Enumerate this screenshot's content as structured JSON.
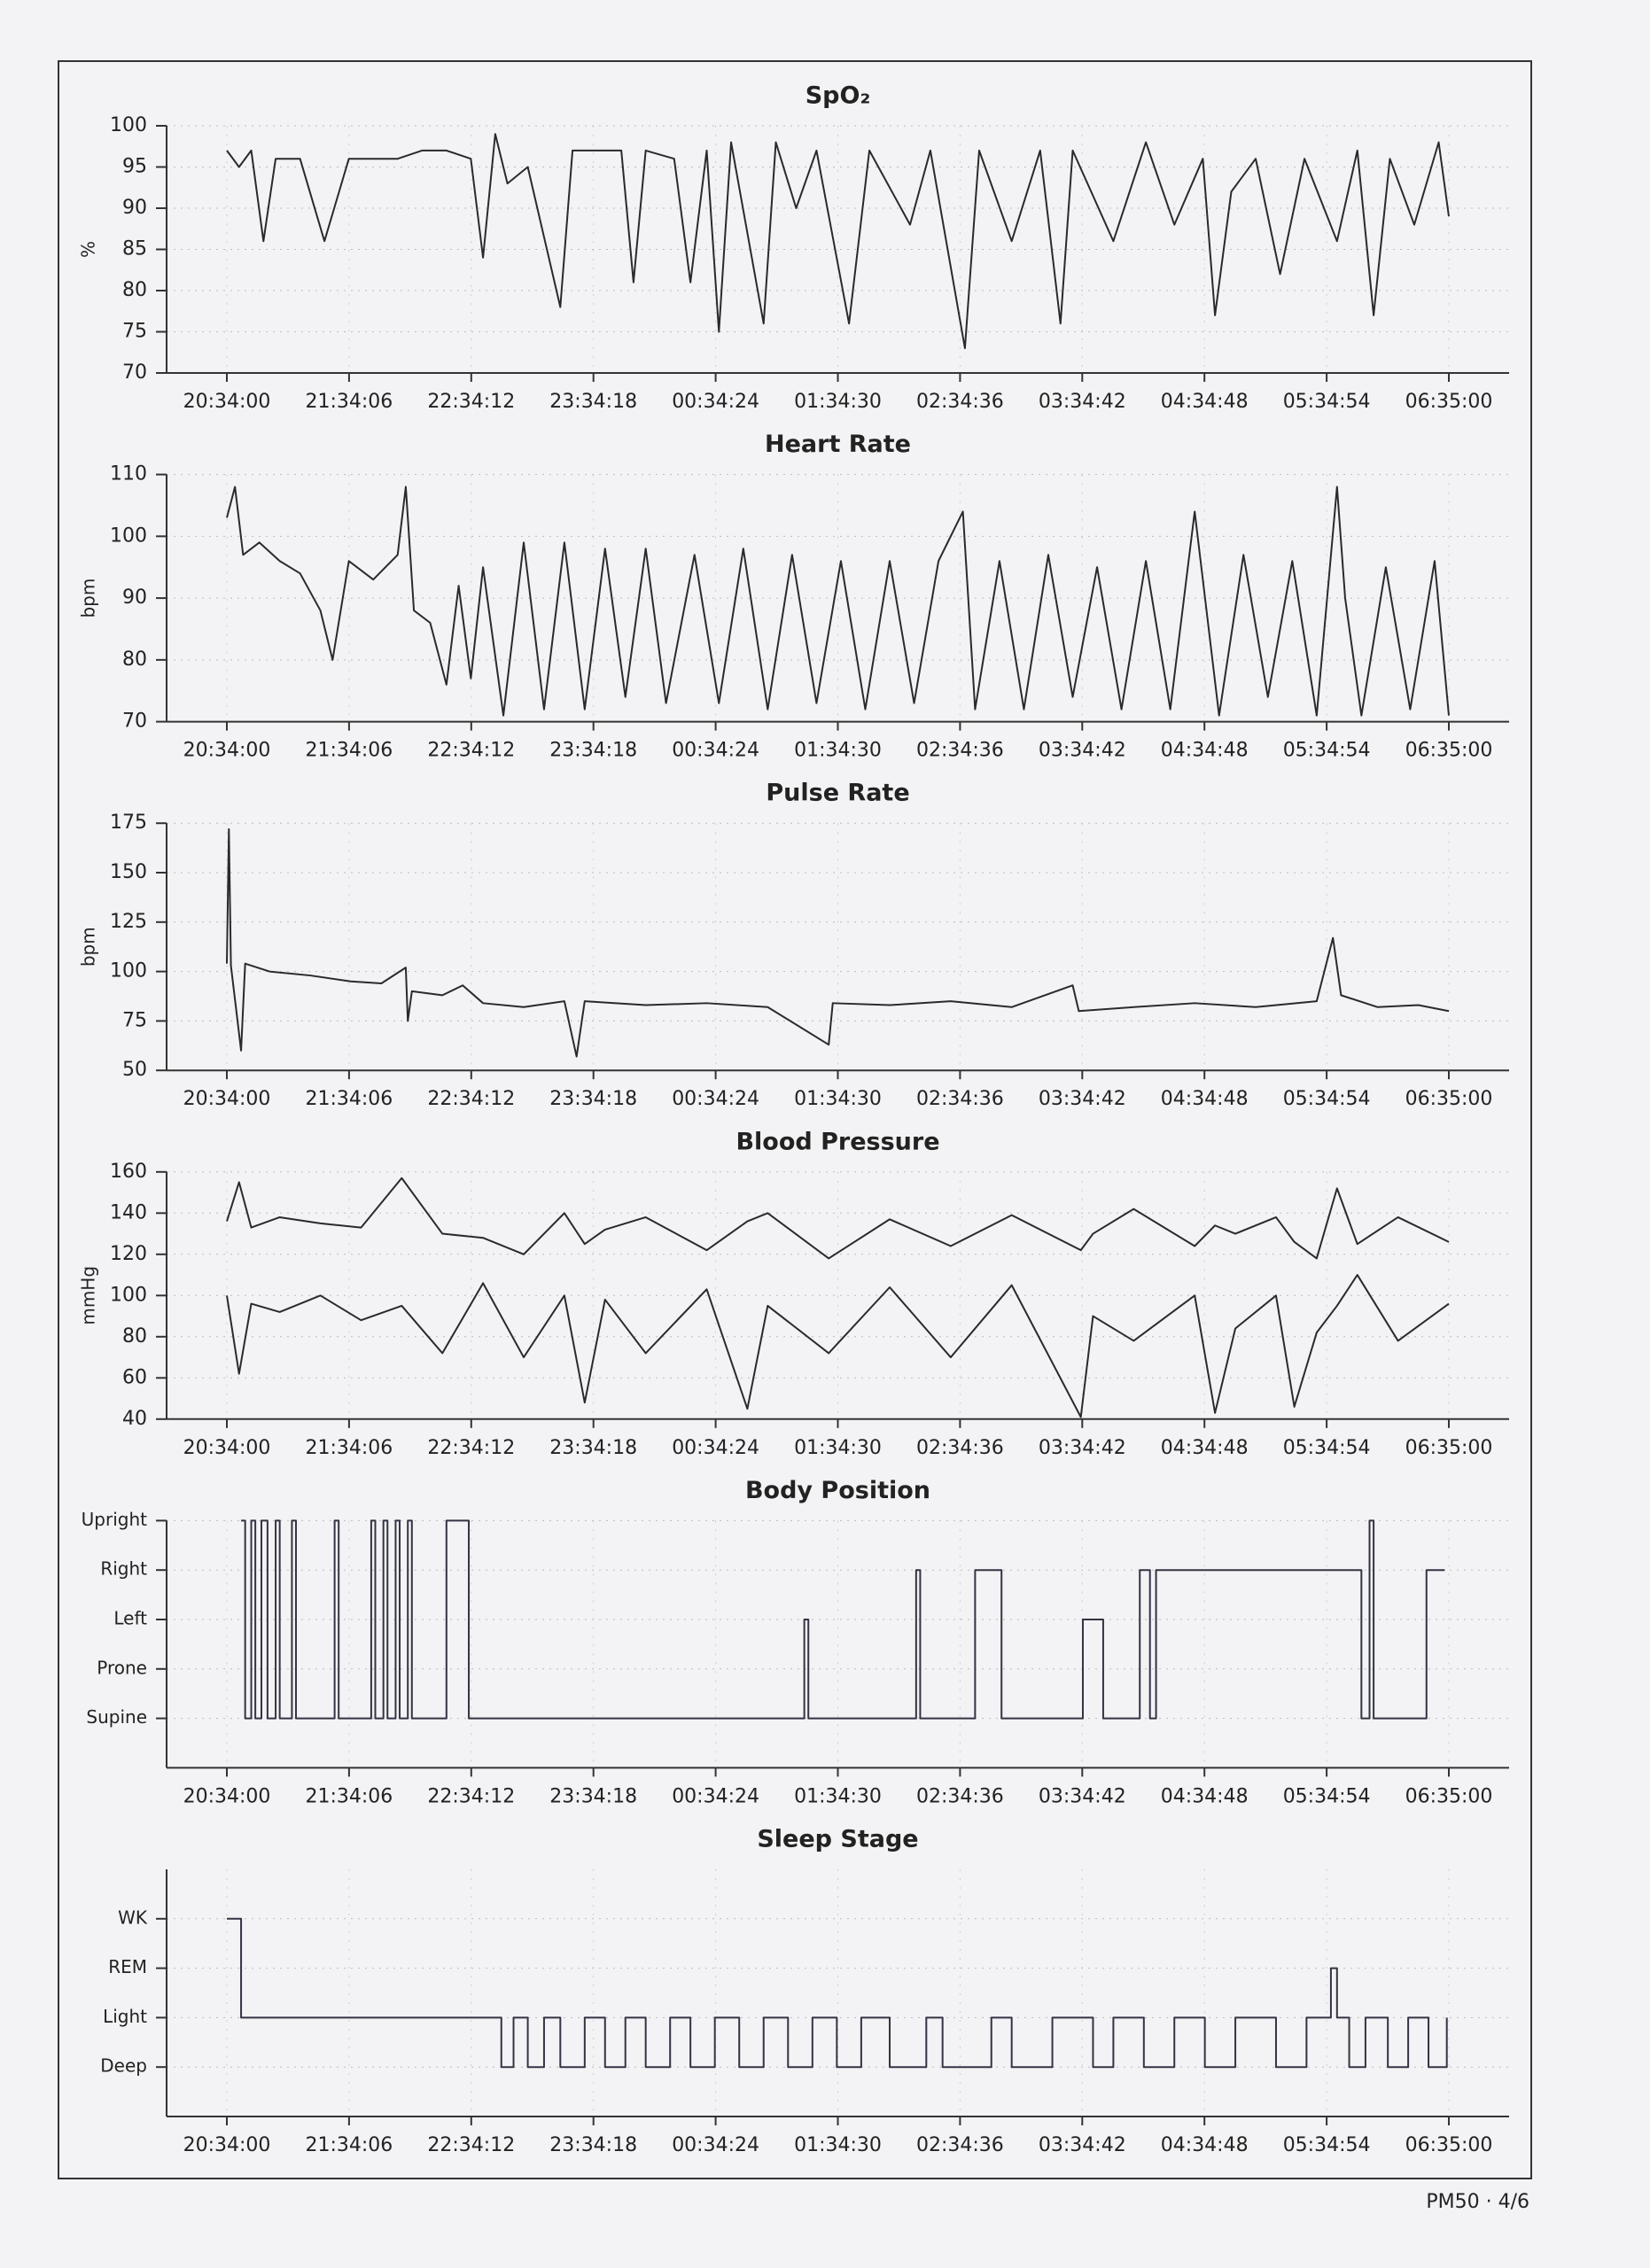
{
  "footer": "PM50 · 4/6",
  "chart_data": [
    {
      "type": "line",
      "title": "SpO₂",
      "ylabel": "%",
      "color": "#2a2a2a",
      "grid": true,
      "xlim": [
        "20:34:00",
        "06:35:00"
      ],
      "xticks": [
        "20:34:00",
        "21:34:06",
        "22:34:12",
        "23:34:18",
        "00:34:24",
        "01:34:30",
        "02:34:36",
        "03:34:42",
        "04:34:48",
        "05:34:54",
        "06:35:00"
      ],
      "ylim": [
        70,
        100
      ],
      "yticks": [
        70,
        75,
        80,
        85,
        90,
        95,
        100
      ],
      "x": [
        "20:34:00",
        "20:40:00",
        "20:46:00",
        "20:52:00",
        "20:58:00",
        "21:10:00",
        "21:22:00",
        "21:34:00",
        "21:46:00",
        "21:58:00",
        "22:10:00",
        "22:22:00",
        "22:34:00",
        "22:40:00",
        "22:46:00",
        "22:52:00",
        "23:02:00",
        "23:18:00",
        "23:24:00",
        "23:48:00",
        "23:54:00",
        "00:00:00",
        "00:14:00",
        "00:22:00",
        "00:30:00",
        "00:36:00",
        "00:42:00",
        "00:58:00",
        "01:04:00",
        "01:14:00",
        "01:24:00",
        "01:40:00",
        "01:50:00",
        "02:10:00",
        "02:20:00",
        "02:37:00",
        "02:44:00",
        "03:00:00",
        "03:14:00",
        "03:24:00",
        "03:30:00",
        "03:50:00",
        "04:06:00",
        "04:20:00",
        "04:34:00",
        "04:40:00",
        "04:48:00",
        "05:00:00",
        "05:12:00",
        "05:24:00",
        "05:40:00",
        "05:50:00",
        "05:58:00",
        "06:06:00",
        "06:18:00",
        "06:30:00",
        "06:35:00"
      ],
      "values": [
        97,
        95,
        97,
        86,
        96,
        96,
        86,
        96,
        96,
        96,
        97,
        97,
        96,
        84,
        99,
        93,
        95,
        78,
        97,
        97,
        81,
        97,
        96,
        81,
        97,
        75,
        98,
        76,
        98,
        90,
        97,
        76,
        97,
        88,
        97,
        73,
        97,
        86,
        97,
        76,
        97,
        86,
        98,
        88,
        96,
        77,
        92,
        96,
        82,
        96,
        86,
        97,
        77,
        96,
        88,
        98,
        89
      ]
    },
    {
      "type": "line",
      "title": "Heart Rate",
      "ylabel": "bpm",
      "color": "#2a2a2a",
      "grid": true,
      "xlim": [
        "20:34:00",
        "06:35:00"
      ],
      "xticks": [
        "20:34:00",
        "21:34:06",
        "22:34:12",
        "23:34:18",
        "00:34:24",
        "01:34:30",
        "02:34:36",
        "03:34:42",
        "04:34:48",
        "05:34:54",
        "06:35:00"
      ],
      "ylim": [
        70,
        110
      ],
      "yticks": [
        70,
        80,
        90,
        100,
        110
      ],
      "x": [
        "20:34:00",
        "20:38:00",
        "20:42:00",
        "20:50:00",
        "21:00:00",
        "21:10:00",
        "21:20:00",
        "21:26:00",
        "21:34:00",
        "21:46:00",
        "21:58:00",
        "22:02:00",
        "22:06:00",
        "22:14:00",
        "22:22:00",
        "22:28:00",
        "22:34:00",
        "22:40:00",
        "22:50:00",
        "23:00:00",
        "23:10:00",
        "23:20:00",
        "23:30:00",
        "23:40:00",
        "23:50:00",
        "00:00:00",
        "00:10:00",
        "00:24:00",
        "00:36:00",
        "00:48:00",
        "01:00:00",
        "01:12:00",
        "01:24:00",
        "01:36:00",
        "01:48:00",
        "02:00:00",
        "02:12:00",
        "02:24:00",
        "02:36:00",
        "02:42:00",
        "02:54:00",
        "03:06:00",
        "03:18:00",
        "03:30:00",
        "03:42:00",
        "03:54:00",
        "04:06:00",
        "04:18:00",
        "04:30:00",
        "04:42:00",
        "04:54:00",
        "05:06:00",
        "05:18:00",
        "05:30:00",
        "05:40:00",
        "05:44:00",
        "05:52:00",
        "06:04:00",
        "06:16:00",
        "06:28:00",
        "06:35:00"
      ],
      "values": [
        103,
        108,
        97,
        99,
        96,
        94,
        88,
        80,
        96,
        93,
        97,
        108,
        88,
        86,
        76,
        92,
        77,
        95,
        71,
        99,
        72,
        99,
        72,
        98,
        74,
        98,
        73,
        97,
        73,
        98,
        72,
        97,
        73,
        96,
        72,
        96,
        73,
        96,
        104,
        72,
        96,
        72,
        97,
        74,
        95,
        72,
        96,
        72,
        104,
        71,
        97,
        74,
        96,
        71,
        108,
        90,
        71,
        95,
        72,
        96,
        71
      ]
    },
    {
      "type": "line",
      "title": "Pulse Rate",
      "ylabel": "bpm",
      "color": "#2a2a2a",
      "grid": true,
      "xlim": [
        "20:34:00",
        "06:35:00"
      ],
      "xticks": [
        "20:34:00",
        "21:34:06",
        "22:34:12",
        "23:34:18",
        "00:34:24",
        "01:34:30",
        "02:34:36",
        "03:34:42",
        "04:34:48",
        "05:34:54",
        "06:35:00"
      ],
      "ylim": [
        50,
        175
      ],
      "yticks": [
        50,
        75,
        100,
        125,
        150,
        175
      ],
      "x": [
        "20:34:00",
        "20:35:00",
        "20:36:00",
        "20:41:00",
        "20:43:00",
        "20:55:00",
        "21:15:00",
        "21:35:00",
        "21:50:00",
        "22:02:00",
        "22:03:00",
        "22:05:00",
        "22:20:00",
        "22:30:00",
        "22:40:00",
        "23:00:00",
        "23:20:00",
        "23:26:00",
        "23:30:00",
        "00:00:00",
        "00:30:00",
        "01:00:00",
        "01:30:00",
        "01:32:00",
        "02:00:00",
        "02:30:00",
        "03:00:00",
        "03:30:00",
        "03:33:00",
        "04:00:00",
        "04:30:00",
        "05:00:00",
        "05:30:00",
        "05:38:00",
        "05:42:00",
        "06:00:00",
        "06:20:00",
        "06:35:00"
      ],
      "values": [
        104,
        172,
        103,
        60,
        104,
        100,
        98,
        95,
        94,
        102,
        75,
        90,
        88,
        93,
        84,
        82,
        85,
        57,
        85,
        83,
        84,
        82,
        63,
        84,
        83,
        85,
        82,
        93,
        80,
        82,
        84,
        82,
        85,
        117,
        88,
        82,
        83,
        80
      ]
    },
    {
      "type": "line",
      "title": "Blood Pressure",
      "ylabel": "mmHg",
      "grid": true,
      "xlim": [
        "20:34:00",
        "06:35:00"
      ],
      "xticks": [
        "20:34:00",
        "21:34:06",
        "22:34:12",
        "23:34:18",
        "00:34:24",
        "01:34:30",
        "02:34:36",
        "03:34:42",
        "04:34:48",
        "05:34:54",
        "06:35:00"
      ],
      "ylim": [
        40,
        160
      ],
      "yticks": [
        40,
        60,
        80,
        100,
        120,
        140,
        160
      ],
      "x": [
        "20:34:00",
        "20:40:00",
        "20:46:00",
        "21:00:00",
        "21:20:00",
        "21:40:00",
        "22:00:00",
        "22:20:00",
        "22:40:00",
        "23:00:00",
        "23:20:00",
        "23:30:00",
        "23:40:00",
        "00:00:00",
        "00:30:00",
        "00:50:00",
        "01:00:00",
        "01:30:00",
        "02:00:00",
        "02:30:00",
        "03:00:00",
        "03:34:00",
        "03:40:00",
        "04:00:00",
        "04:30:00",
        "04:40:00",
        "04:50:00",
        "05:10:00",
        "05:19:00",
        "05:30:00",
        "05:40:00",
        "05:50:00",
        "06:10:00",
        "06:35:00"
      ],
      "series": [
        {
          "color": "#2a2a2a",
          "values": [
            136,
            155,
            133,
            138,
            135,
            133,
            157,
            130,
            128,
            120,
            140,
            125,
            132,
            138,
            122,
            136,
            140,
            118,
            137,
            124,
            139,
            122,
            130,
            142,
            124,
            134,
            130,
            138,
            126,
            118,
            152,
            125,
            138,
            126
          ]
        },
        {
          "color": "#2a2a2a",
          "values": [
            100,
            62,
            96,
            92,
            100,
            88,
            95,
            72,
            106,
            70,
            100,
            48,
            98,
            72,
            103,
            45,
            95,
            72,
            104,
            70,
            105,
            41,
            90,
            78,
            100,
            43,
            84,
            100,
            46,
            82,
            95,
            110,
            78,
            96
          ]
        }
      ]
    },
    {
      "type": "line",
      "step": true,
      "title": "Body Position",
      "color": "#333344",
      "grid": true,
      "xlim": [
        "20:34:00",
        "06:35:00"
      ],
      "xticks": [
        "20:34:00",
        "21:34:06",
        "22:34:12",
        "23:34:18",
        "00:34:24",
        "01:34:30",
        "02:34:36",
        "03:34:42",
        "04:34:48",
        "05:34:54",
        "06:35:00"
      ],
      "ylim": [
        0,
        5
      ],
      "yticks": [
        {
          "value": 1,
          "label": "Supine"
        },
        {
          "value": 2,
          "label": "Prone"
        },
        {
          "value": 3,
          "label": "Left"
        },
        {
          "value": 4,
          "label": "Right"
        },
        {
          "value": 5,
          "label": "Upright"
        }
      ],
      "x": [
        "20:41:00",
        "20:43:00",
        "20:46:00",
        "20:48:00",
        "20:51:00",
        "20:54:00",
        "20:58:00",
        "21:00:00",
        "21:06:00",
        "21:08:00",
        "21:27:00",
        "21:29:00",
        "21:45:00",
        "21:47:00",
        "21:51:00",
        "21:53:00",
        "21:57:00",
        "21:59:00",
        "22:03:00",
        "22:05:00",
        "22:22:00",
        "22:33:00",
        "01:18:00",
        "01:20:00",
        "02:13:00",
        "02:15:00",
        "02:42:00",
        "02:55:00",
        "03:35:00",
        "03:45:00",
        "04:03:00",
        "04:08:00",
        "04:11:00",
        "05:52:00",
        "05:56:00",
        "05:58:00",
        "06:24:00",
        "06:33:00"
      ],
      "values": [
        5,
        1,
        5,
        1,
        5,
        1,
        5,
        1,
        5,
        1,
        5,
        1,
        5,
        1,
        5,
        1,
        5,
        1,
        5,
        1,
        5,
        1,
        3,
        1,
        4,
        1,
        4,
        1,
        3,
        1,
        4,
        1,
        4,
        1,
        5,
        1,
        4,
        4
      ]
    },
    {
      "type": "line",
      "step": true,
      "title": "Sleep Stage",
      "color": "#333344",
      "grid": true,
      "xlim": [
        "20:34:00",
        "06:35:00"
      ],
      "xticks": [
        "20:34:00",
        "21:34:06",
        "22:34:12",
        "23:34:18",
        "00:34:24",
        "01:34:30",
        "02:34:36",
        "03:34:42",
        "04:34:48",
        "05:34:54",
        "06:35:00"
      ],
      "ylim": [
        0,
        5
      ],
      "yticks": [
        {
          "value": 1,
          "label": "Deep"
        },
        {
          "value": 2,
          "label": "Light"
        },
        {
          "value": 3,
          "label": "REM"
        },
        {
          "value": 4,
          "label": "WK"
        }
      ],
      "x": [
        "20:34:00",
        "20:41:00",
        "22:49:00",
        "22:55:00",
        "23:02:00",
        "23:10:00",
        "23:18:00",
        "23:30:00",
        "23:40:00",
        "23:50:00",
        "00:00:00",
        "00:12:00",
        "00:22:00",
        "00:34:00",
        "00:46:00",
        "00:58:00",
        "01:10:00",
        "01:22:00",
        "01:34:00",
        "01:46:00",
        "02:00:00",
        "02:18:00",
        "02:26:00",
        "02:50:00",
        "03:00:00",
        "03:20:00",
        "03:40:00",
        "03:50:00",
        "04:05:00",
        "04:20:00",
        "04:35:00",
        "04:50:00",
        "05:10:00",
        "05:25:00",
        "05:37:00",
        "05:40:00",
        "05:46:00",
        "05:54:00",
        "06:05:00",
        "06:15:00",
        "06:25:00",
        "06:34:00"
      ],
      "values": [
        4,
        2,
        1,
        2,
        1,
        2,
        1,
        2,
        1,
        2,
        1,
        2,
        1,
        2,
        1,
        2,
        1,
        2,
        1,
        2,
        1,
        2,
        1,
        2,
        1,
        2,
        1,
        2,
        1,
        2,
        1,
        2,
        1,
        2,
        3,
        2,
        1,
        2,
        1,
        2,
        1,
        2
      ]
    }
  ]
}
